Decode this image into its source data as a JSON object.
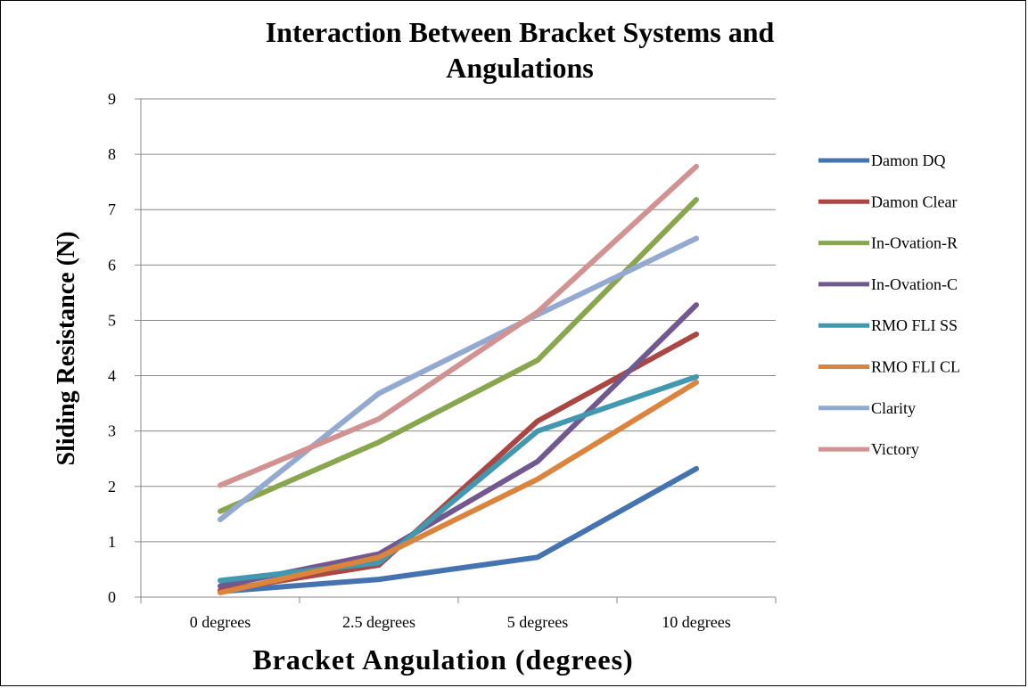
{
  "chart_data": {
    "type": "line",
    "title_lines": [
      "Interaction Between  Bracket Systems and",
      "Angulations"
    ],
    "xlabel": "Bracket Angulation (degrees)",
    "ylabel": "Sliding Resistance (N)",
    "categories": [
      "0 degrees",
      "2.5 degrees",
      "5 degrees",
      "10 degrees"
    ],
    "ylim": [
      0,
      9
    ],
    "yticks": [
      0,
      1,
      2,
      3,
      4,
      5,
      6,
      7,
      8,
      9
    ],
    "grid": "horizontal",
    "legend_position": "right",
    "series": [
      {
        "name": "Damon DQ",
        "color": "#4573b0",
        "values": [
          0.1,
          0.32,
          0.72,
          2.32
        ]
      },
      {
        "name": "Damon Clear",
        "color": "#aa4643",
        "values": [
          0.12,
          0.58,
          3.18,
          4.75
        ]
      },
      {
        "name": "In-Ovation-R",
        "color": "#89a54e",
        "values": [
          1.55,
          2.8,
          4.28,
          7.18
        ]
      },
      {
        "name": "In-Ovation-C",
        "color": "#71588f",
        "values": [
          0.2,
          0.78,
          2.45,
          5.28
        ]
      },
      {
        "name": "RMO FLI SS",
        "color": "#4198af",
        "values": [
          0.3,
          0.62,
          3.0,
          3.98
        ]
      },
      {
        "name": "RMO FLI CL",
        "color": "#db843d",
        "values": [
          0.08,
          0.72,
          2.13,
          3.88
        ]
      },
      {
        "name": "Clarity",
        "color": "#93a9cf",
        "values": [
          1.4,
          3.68,
          5.1,
          6.48
        ]
      },
      {
        "name": "Victory",
        "color": "#d19392",
        "values": [
          2.02,
          3.22,
          5.15,
          7.78
        ]
      }
    ]
  }
}
